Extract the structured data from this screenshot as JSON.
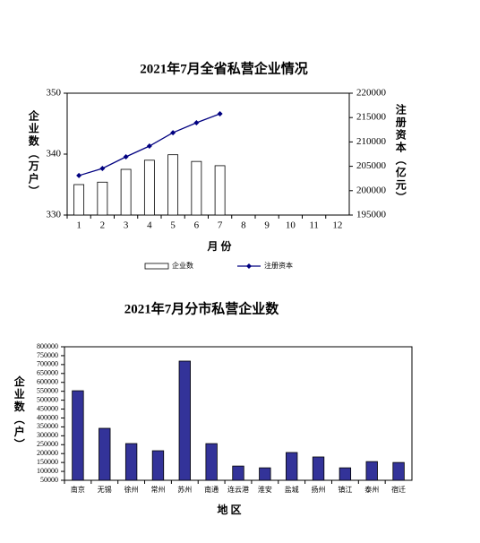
{
  "chart_data": [
    {
      "type": "combo",
      "title": "2021年7月全省私营企业情况",
      "categories": [
        "1",
        "2",
        "3",
        "4",
        "5",
        "6",
        "7",
        "8",
        "9",
        "10",
        "11",
        "12"
      ],
      "x_label": "月  份",
      "y_label": "企业数（万户）",
      "y2_label": "注册资本（亿元）",
      "series": [
        {
          "name": "企业数",
          "type": "bar",
          "color": "#ffffff",
          "values": [
            335.0,
            335.4,
            337.5,
            339.0,
            339.9,
            338.8,
            338.1,
            null,
            null,
            null,
            null,
            null
          ]
        },
        {
          "name": "注册资本",
          "type": "line",
          "axis": "y2",
          "color": "#000080",
          "values": [
            203100,
            204560,
            206950,
            209150,
            211900,
            213930,
            215770,
            null,
            null,
            null,
            null,
            null
          ]
        }
      ],
      "ylim": [
        330,
        350
      ],
      "yticks": [
        330,
        340,
        350
      ],
      "y2lim": [
        195000,
        220000
      ],
      "y2ticks": [
        195000,
        200000,
        205000,
        210000,
        215000,
        220000
      ],
      "legend": "bottom"
    },
    {
      "type": "bar",
      "title": "2021年7月分市私营企业数",
      "categories": [
        "南京",
        "无锡",
        "徐州",
        "常州",
        "苏州",
        "南通",
        "连云港",
        "淮安",
        "盐城",
        "扬州",
        "镇江",
        "泰州",
        "宿迁"
      ],
      "x_label": "地  区",
      "y_label": "企业数（户）",
      "color": "#333399",
      "values": [
        553000,
        341900,
        256300,
        216000,
        719500,
        256000,
        130000,
        120000,
        206000,
        181000,
        120000,
        155000,
        150000
      ],
      "ylim": [
        50000,
        800000
      ],
      "yticks": [
        50000,
        100000,
        150000,
        200000,
        250000,
        300000,
        350000,
        400000,
        450000,
        500000,
        550000,
        600000,
        650000,
        700000,
        750000,
        800000
      ]
    }
  ]
}
